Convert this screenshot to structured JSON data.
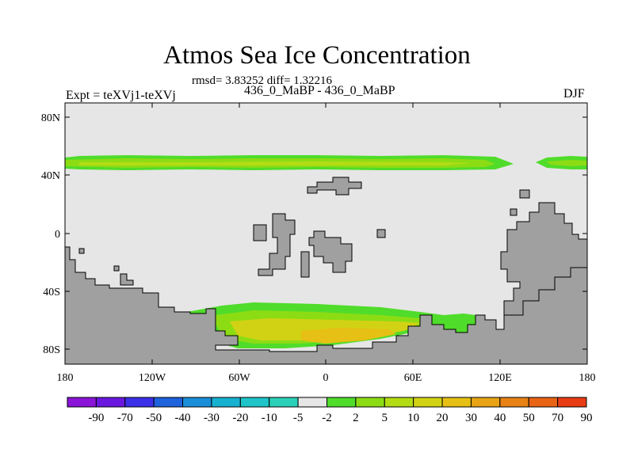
{
  "header": {
    "title": "Atmos Sea Ice Concentration",
    "stats": "rmsd= 3.83252 diff= 1.32216",
    "experiment": "Expt = teXVj1-teXVj",
    "period": "436_0_MaBP - 436_0_MaBP",
    "season": "DJF"
  },
  "axes": {
    "y_ticks": [
      "80N",
      "40N",
      "0",
      "40S",
      "80S"
    ],
    "x_ticks": [
      "180",
      "120W",
      "60W",
      "0",
      "60E",
      "120E",
      "180"
    ]
  },
  "colorbar": {
    "labels": [
      "-90",
      "-70",
      "-50",
      "-40",
      "-30",
      "-20",
      "-10",
      "-5",
      "-2",
      "2",
      "5",
      "10",
      "20",
      "30",
      "40",
      "50",
      "70",
      "90"
    ],
    "colors": [
      "#8a14d8",
      "#6a18e0",
      "#3a30e8",
      "#1e62dc",
      "#1a8ed8",
      "#16b0d0",
      "#1ec4c8",
      "#2ad0b8",
      "#e6e6e6",
      "#50dc2a",
      "#8cdc14",
      "#b4dc14",
      "#d2d214",
      "#e6c014",
      "#e8a414",
      "#e88214",
      "#e86414",
      "#e83c14"
    ]
  },
  "map_colors": {
    "land": "#a0a0a0",
    "ocean": "#e6e6e6"
  }
}
